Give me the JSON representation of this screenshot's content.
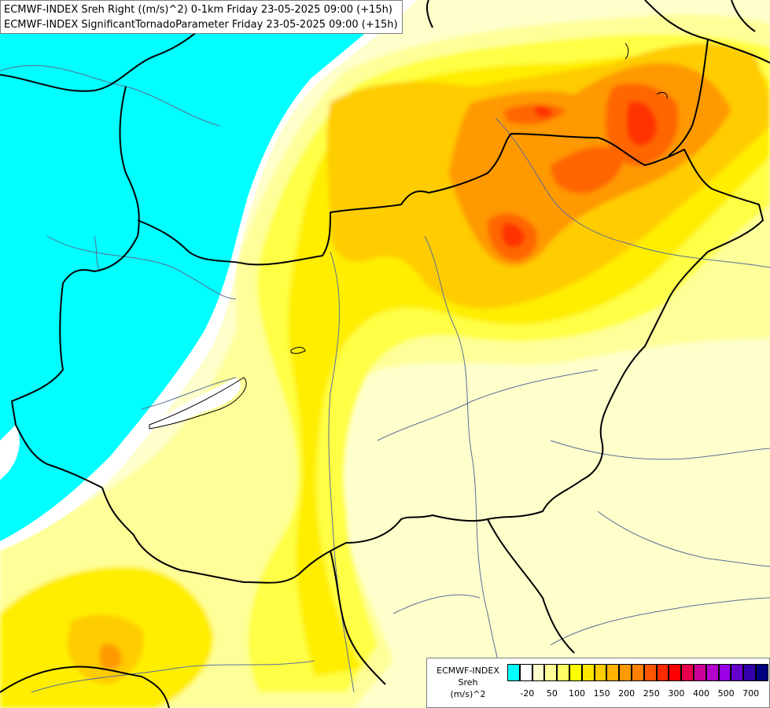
{
  "header": {
    "line1": "ECMWF-INDEX Sreh Right ((m/s)^2) 0-1km Friday 23-05-2025 09:00 (+15h)",
    "line2": "ECMWF-INDEX SignificantTornadoParameter Friday 23-05-2025 09:00 (+15h)"
  },
  "legend": {
    "model": "ECMWF-INDEX",
    "variable": "Sreh",
    "unit": "(m/s)^2",
    "colors": [
      "#00ffff",
      "#ffffff",
      "#ffffcc",
      "#ffff99",
      "#ffff66",
      "#ffff00",
      "#ffe600",
      "#ffcc00",
      "#ffb300",
      "#ff9900",
      "#ff8000",
      "#ff5500",
      "#ff2a00",
      "#ff0000",
      "#e6004c",
      "#cc0099",
      "#b300cc",
      "#9900e6",
      "#6600cc",
      "#3300aa",
      "#000080"
    ],
    "ticks": [
      "-20",
      "50",
      "100",
      "150",
      "200",
      "250",
      "300",
      "400",
      "500",
      "700"
    ]
  },
  "colors": {
    "cyan_low": "#00ffff",
    "borders": "#000000",
    "rivers": "#5a6e96"
  }
}
